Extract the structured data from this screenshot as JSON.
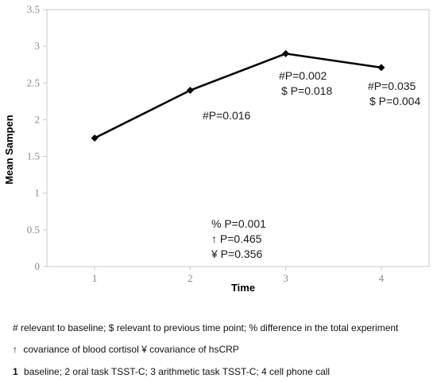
{
  "chart_data": {
    "type": "line",
    "x": [
      1,
      2,
      3,
      4
    ],
    "series": [
      {
        "values": [
          1.75,
          2.4,
          2.9,
          2.71
        ]
      }
    ],
    "xlabel": "Time",
    "ylabel": "Mean Sampen",
    "xticks": [
      "1",
      "2",
      "3",
      "4"
    ],
    "yticks": [
      "0",
      "0.5",
      "1",
      "1.5",
      "2",
      "2.5",
      "3",
      "3.5"
    ],
    "ylim": [
      0,
      3.5
    ],
    "grid": false,
    "legend": "none",
    "line_color": "#000000",
    "axis_color": "#c8c8c8",
    "annotations": {
      "point2": [
        "#P=0.016"
      ],
      "point3": [
        "#P=0.002",
        "$ P=0.018"
      ],
      "point4": [
        "#P=0.035",
        "$ P=0.004"
      ],
      "overall": [
        "% P=0.001",
        "↑ P=0.465",
        "¥ P=0.356"
      ]
    }
  },
  "notes": {
    "line1": "# relevant to baseline; $ relevant to previous time point;  % difference in the total experiment",
    "line2_symbol": "↑",
    "line2_text": "covariance of blood cortisol ¥  covariance of hsCRP",
    "line3_bold": "1",
    "line3_text": "baseline; 2 oral task TSST-C; 3 arithmetic task TSST-C; 4 cell phone call"
  }
}
